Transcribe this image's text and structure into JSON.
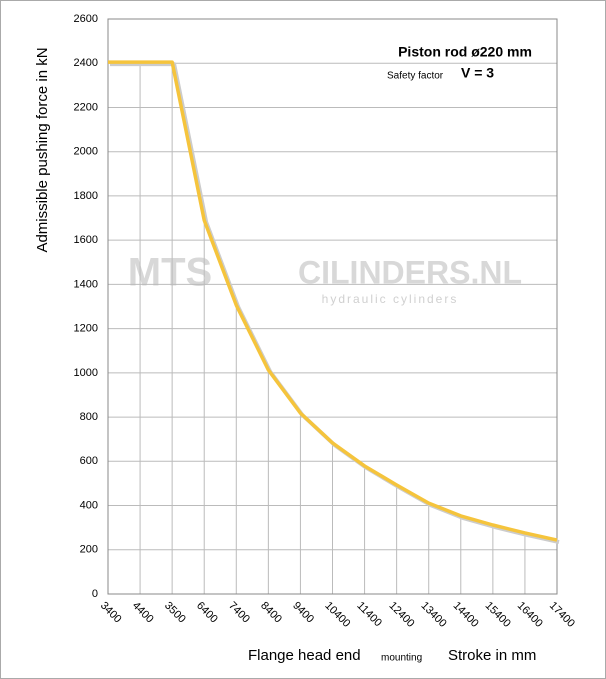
{
  "chart_data": {
    "type": "line",
    "y_label": "Admissible pushing force in kN",
    "x_label": "Flange head end",
    "x_label_sub": "mounting",
    "x_label_right": "Stroke in mm",
    "annotations": [
      "Piston rod ø220 mm",
      "Safety factor",
      "V = 3"
    ],
    "watermark": [
      "MTS",
      "CILINDERS.NL",
      "hydraulic cylinders"
    ],
    "categories": [
      "3400",
      "4400",
      "3500",
      "6400",
      "7400",
      "8400",
      "9400",
      "10400",
      "11400",
      "12400",
      "13400",
      "14400",
      "15400",
      "16400",
      "17400"
    ],
    "series": [
      {
        "color": "#f5c43c",
        "values": [
          2405,
          2405,
          2405,
          1690,
          1306,
          1013,
          818,
          683,
          579,
          493,
          411,
          353,
          312,
          276,
          244
        ]
      }
    ],
    "ylim": [
      0,
      2600
    ],
    "yticks": [
      0,
      200,
      400,
      600,
      800,
      1000,
      1200,
      1400,
      1600,
      1800,
      2000,
      2200,
      2400,
      2600
    ],
    "grid": true
  }
}
